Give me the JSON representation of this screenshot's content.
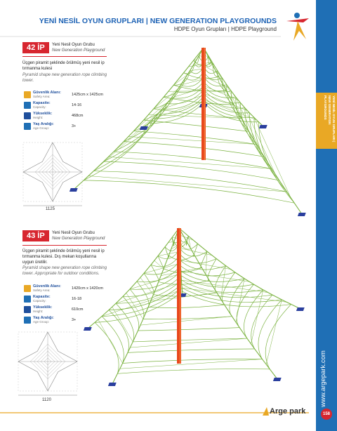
{
  "header": {
    "title": "YENİ NESİL OYUN GRUPLARI | NEW GENERATION PLAYGROUNDS",
    "subtitle": "HDPE Oyun Grupları | HDPE Playground"
  },
  "sidebar": {
    "section": "YENİ NESİL OYUN GRUPLARI | NEW GENERATION PLAYGROUNDS",
    "website": "www.argepark.com",
    "page_number": "158"
  },
  "products": [
    {
      "code": "42 İP",
      "name": "Yeni Nesil Oyun Grubu",
      "name_en": "New Generation Playground",
      "description": "Üçgen piramit şeklinde örülmüş yeni nesil ip tırmanma kulesi",
      "description_en": "Pyramid shape new generation rope climbing tower.",
      "specs": [
        {
          "label": "Güvenlik Alanı:",
          "label_en": "Safety Area:",
          "value": "1425cm x 1425cm"
        },
        {
          "label": "Kapasite:",
          "label_en": "Capacity:",
          "value": "14-16"
        },
        {
          "label": "Yükseklik:",
          "label_en": "Height:",
          "value": "468cm"
        },
        {
          "label": "Yaş Aralığı:",
          "label_en": "Age Group:",
          "value": "3+"
        }
      ],
      "plan_dimension": "1125"
    },
    {
      "code": "43 İP",
      "name": "Yeni Nesil Oyun Grubu",
      "name_en": "New Generation Playground",
      "description": "Üçgen piramit şeklinde örülmüş yeni nesil ip tırmanma kulesi. Dış mekan koşullarına uygun üretilir.",
      "description_en": "Pyramid shape new generation rope climbing tower. Appropriate for outdoor conditions.",
      "specs": [
        {
          "label": "Güvenlik Alanı:",
          "label_en": "Safety Area:",
          "value": "1420cm x 1420cm"
        },
        {
          "label": "Kapasite:",
          "label_en": "Capacity:",
          "value": "16-18"
        },
        {
          "label": "Yükseklik:",
          "label_en": "Height:",
          "value": "610cm"
        },
        {
          "label": "Yaş Aralığı:",
          "label_en": "Age Group:",
          "value": "3+"
        }
      ],
      "plan_dimension": "1120"
    }
  ],
  "footer": {
    "brand": "Arge park"
  }
}
